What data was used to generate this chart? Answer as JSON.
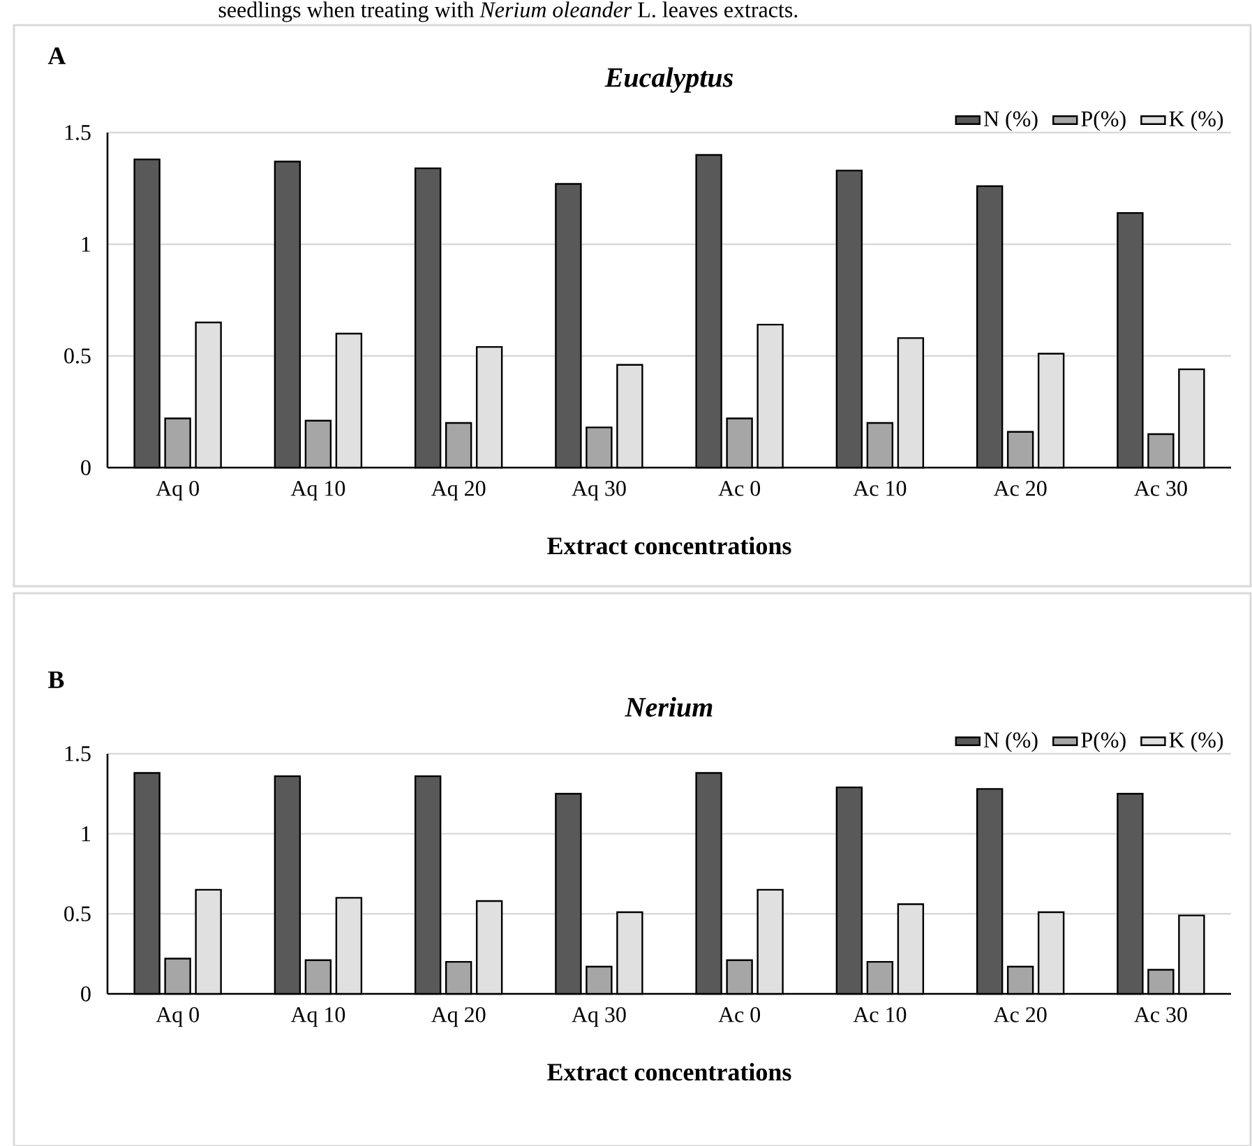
{
  "chart_data": [
    {
      "type": "bar",
      "title": "Eucalyptus",
      "xlabel": "Extract concentrations",
      "annotations": [
        "seedlings when treating with *Nerium oleander* L. leaves extracts.",
        "A"
      ],
      "categories": [
        "Aq 0",
        "Aq 10",
        "Aq 20",
        "Aq 30",
        "Ac 0",
        "Ac 10",
        "Ac 20",
        "Ac 30"
      ],
      "series": [
        {
          "name": "N (%)",
          "color": "#595959",
          "values": [
            1.38,
            1.37,
            1.34,
            1.27,
            1.4,
            1.33,
            1.26,
            1.14
          ]
        },
        {
          "name": "P(%)",
          "color": "#a6a6a6",
          "values": [
            0.22,
            0.21,
            0.2,
            0.18,
            0.22,
            0.2,
            0.16,
            0.15
          ]
        },
        {
          "name": "K (%)",
          "color": "#e0e0e0",
          "values": [
            0.65,
            0.6,
            0.54,
            0.46,
            0.64,
            0.58,
            0.51,
            0.44
          ]
        }
      ],
      "ylim": [
        0,
        1.5
      ],
      "yticks": [
        0,
        0.5,
        1,
        1.5
      ],
      "grid": "y",
      "legend": "top right"
    },
    {
      "type": "bar",
      "title": "Nerium",
      "xlabel": "Extract concentrations",
      "annotations": [
        "B"
      ],
      "categories": [
        "Aq 0",
        "Aq 10",
        "Aq 20",
        "Aq 30",
        "Ac 0",
        "Ac 10",
        "Ac 20",
        "Ac 30"
      ],
      "series": [
        {
          "name": "N (%)",
          "color": "#595959",
          "values": [
            1.38,
            1.36,
            1.36,
            1.25,
            1.38,
            1.29,
            1.28,
            1.25
          ]
        },
        {
          "name": "P(%)",
          "color": "#a6a6a6",
          "values": [
            0.22,
            0.21,
            0.2,
            0.17,
            0.21,
            0.2,
            0.17,
            0.15
          ]
        },
        {
          "name": "K (%)",
          "color": "#e0e0e0",
          "values": [
            0.65,
            0.6,
            0.58,
            0.51,
            0.65,
            0.56,
            0.51,
            0.49
          ]
        }
      ],
      "ylim": [
        0,
        1.5
      ],
      "yticks": [
        0,
        0.5,
        1,
        1.5
      ],
      "grid": "y",
      "legend": "top right"
    }
  ]
}
